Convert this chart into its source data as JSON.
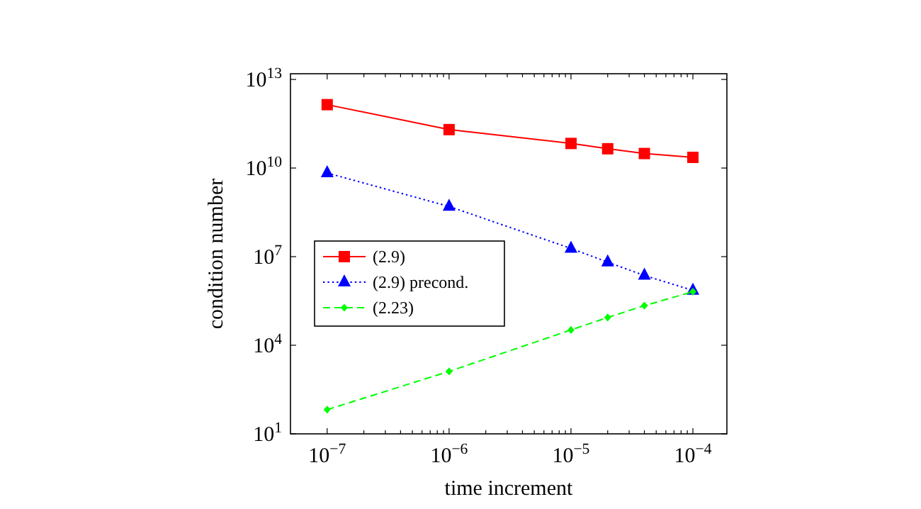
{
  "chart_data": {
    "type": "line",
    "xlabel": "time increment",
    "ylabel": "condition number",
    "log": "xy",
    "grid": false,
    "legend": "left",
    "x": [
      1e-07,
      1e-06,
      1e-05,
      2e-05,
      4e-05,
      0.0001
    ],
    "xlim": [
      5e-08,
      0.00019
    ],
    "xticks": [
      {
        "value": 1e-07,
        "label": "10$^{−7}$"
      },
      {
        "value": 2e-07,
        "label": null
      },
      {
        "value": 3e-07,
        "label": null
      },
      {
        "value": 4e-07,
        "label": null
      },
      {
        "value": 5e-07,
        "label": null
      },
      {
        "value": 6e-07,
        "label": null
      },
      {
        "value": 7e-07,
        "label": null
      },
      {
        "value": 8e-07,
        "label": null
      },
      {
        "value": 9e-07,
        "label": null
      },
      {
        "value": 1e-06,
        "label": "10$^{−6}$"
      },
      {
        "value": 2e-06,
        "label": null
      },
      {
        "value": 3e-06,
        "label": null
      },
      {
        "value": 4e-06,
        "label": null
      },
      {
        "value": 5e-06,
        "label": null
      },
      {
        "value": 6e-06,
        "label": null
      },
      {
        "value": 7e-06,
        "label": null
      },
      {
        "value": 8e-06,
        "label": null
      },
      {
        "value": 9e-06,
        "label": null
      },
      {
        "value": 1e-05,
        "label": "10$^{−5}$"
      },
      {
        "value": 2e-05,
        "label": null
      },
      {
        "value": 3e-05,
        "label": null
      },
      {
        "value": 4e-05,
        "label": null
      },
      {
        "value": 5e-05,
        "label": null
      },
      {
        "value": 6e-05,
        "label": null
      },
      {
        "value": 7e-05,
        "label": null
      },
      {
        "value": 8e-05,
        "label": null
      },
      {
        "value": 9e-05,
        "label": null
      },
      {
        "value": 0.0001,
        "label": "10$^{−4}$"
      }
    ],
    "ylim": [
      10,
      15600000000000.0
    ],
    "yticks": [
      {
        "value": 10,
        "label": "10$^{1}$"
      },
      {
        "value": 10000.0,
        "label": "10$^{4}$"
      },
      {
        "value": 10000000.0,
        "label": "10$^{7}$"
      },
      {
        "value": 10000000000.0,
        "label": "10$^{10}$"
      },
      {
        "value": 10000000000000.0,
        "label": "10$^{13}$"
      }
    ],
    "series": [
      {
        "name": "(2.9)",
        "color": "#ff0000",
        "marker": "square",
        "line_style": "solid",
        "values": [
          1400000000000.0,
          200000000000.0,
          68000000000.0,
          45000000000.0,
          31000000000.0,
          23000000000.0
        ]
      },
      {
        "name": "(2.9) precond.",
        "color": "#0000ff",
        "marker": "triangle",
        "line_style": "dotted",
        "values": [
          6800000000.0,
          500000000.0,
          19000000.0,
          6500000.0,
          2300000.0,
          720000.0
        ]
      },
      {
        "name": "(2.23)",
        "color": "#00ff00",
        "marker": "diamond",
        "line_style": "dashed",
        "values": [
          66,
          1300,
          33000.0,
          87000.0,
          220000.0,
          650000.0
        ]
      }
    ]
  }
}
